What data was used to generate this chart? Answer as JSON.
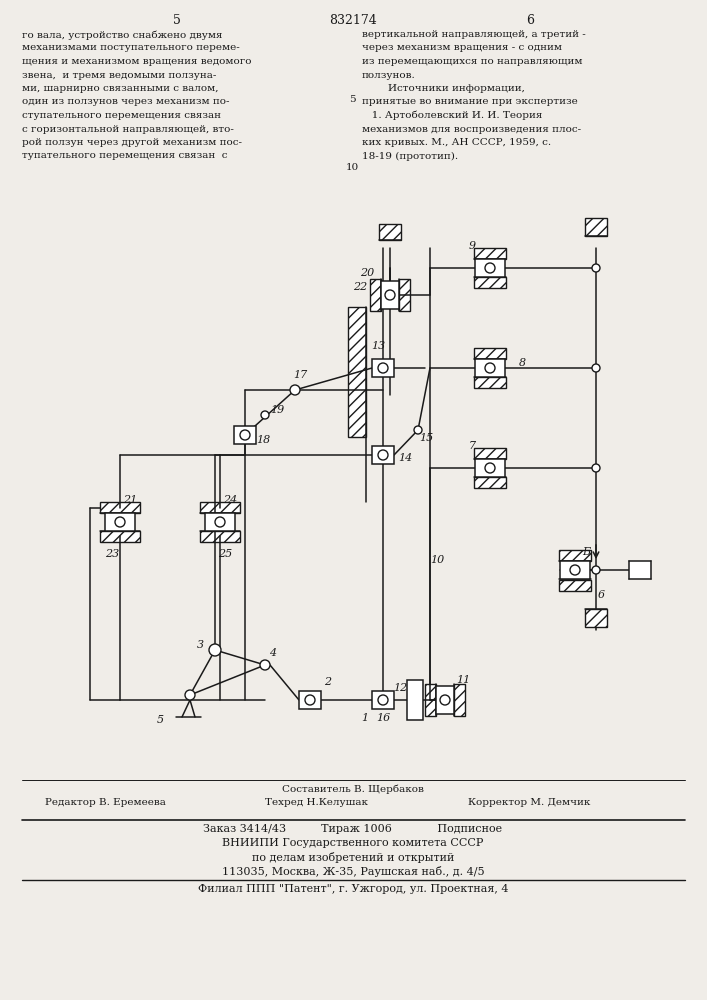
{
  "bg_color": "#f0ede8",
  "page_width": 7.07,
  "page_height": 10.0,
  "top_text_left": "го вала, устройство снабжено двумя\nмеханизмами поступательного переме-\nщения и механизмом вращения ведомого\nзвена,  и тремя ведомыми ползуна-\nми, шарнирно связанными с валом,\nодин из ползунов через механизм по-\nступательного перемещения связан\nс горизонтальной направляющей, вто-\nрой ползун через другой механизм пос-\nтупательного перемещения связан  с",
  "top_text_right": "вертикальной направляющей, а третий -\nчерез механизм вращения - с одним\nиз перемещающихся по направляющим\nползунов.\n        Источники информации,\nпринятые во внимание при экспертизе\n   1. Артоболевский И. И. Теория\nмеханизмов для воспроизведения плос-\nких кривых. М., АН СССР, 1959, с.\n18-19 (прототип).",
  "page_num_left": "5",
  "page_num_center": "832174",
  "page_num_right": "6",
  "bottom_text_composer": "Составитель В. Щербаков",
  "bottom_text_editor": "Редактор В. Еремеева",
  "bottom_text_techred": "Техред Н.Келушак",
  "bottom_text_corrector": "Корректор М. Демчик",
  "bottom_text_line1": "Заказ 3414/43          Тираж 1006             Подписное",
  "bottom_text_line2": "ВНИИПИ Государственного комитета СССР",
  "bottom_text_line3": "по делам изобретений и открытий",
  "bottom_text_line4": "113035, Москва, Ж-35, Раушская наб., д. 4/5",
  "bottom_text_line5": "Филиал ППП \"Патент\", г. Ужгород, ул. Проектная, 4"
}
